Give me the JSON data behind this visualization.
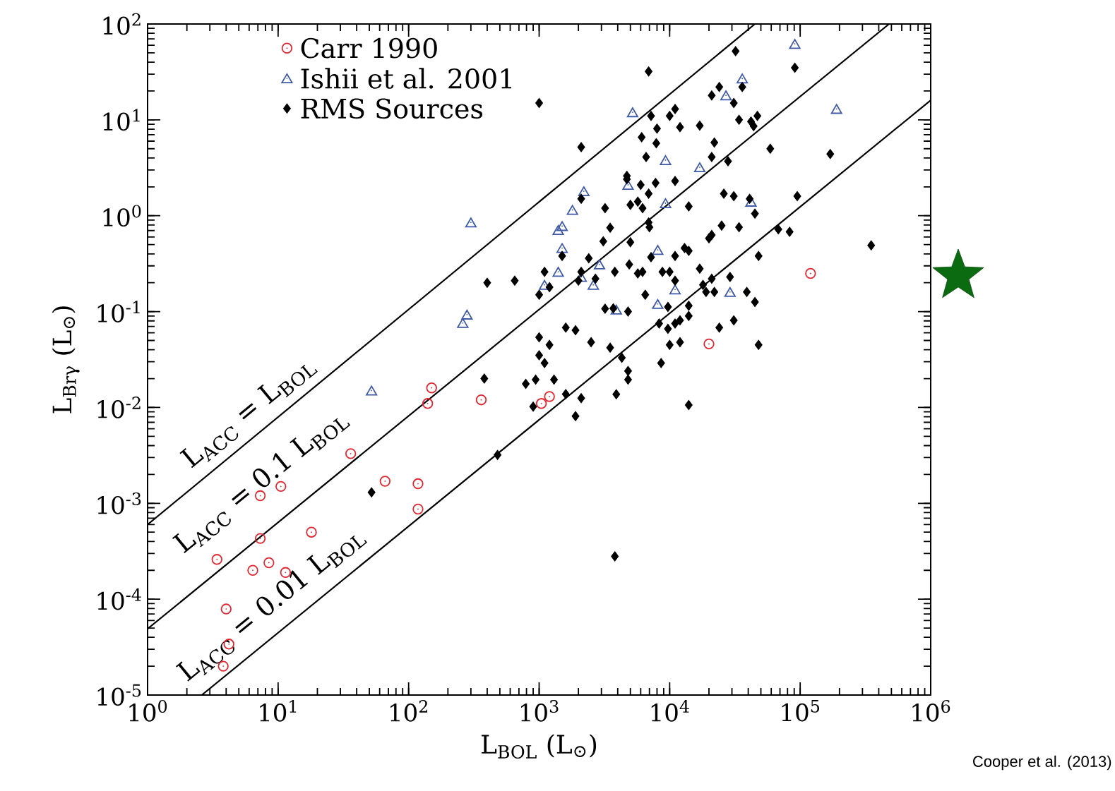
{
  "chart_data": {
    "type": "scatter",
    "xlabel": "L$_{BOL}$  (L$_{⊙}$)",
    "ylabel": "L$_{Brγ}$  (L$_{⊙}$)",
    "log": "xy",
    "legend": "top left",
    "xlim": [
      1,
      1000000
    ],
    "ylim": [
      1e-05,
      100
    ],
    "xticks": [
      {
        "value": 1,
        "label": "10$^{0}$"
      },
      {
        "value": 10,
        "label": "10$^{1}$"
      },
      {
        "value": 100,
        "label": "10$^{2}$"
      },
      {
        "value": 1000,
        "label": "10$^{3}$"
      },
      {
        "value": 10000,
        "label": "10$^{4}$"
      },
      {
        "value": 100000,
        "label": "10$^{5}$"
      },
      {
        "value": 1000000,
        "label": "10$^{6}$"
      }
    ],
    "yticks": [
      {
        "value": 1e-05,
        "label": "10$^{-5}$"
      },
      {
        "value": 0.0001,
        "label": "10$^{-4}$"
      },
      {
        "value": 0.001,
        "label": "10$^{-3}$"
      },
      {
        "value": 0.01,
        "label": "10$^{-2}$"
      },
      {
        "value": 0.1,
        "label": "10$^{-1}$"
      },
      {
        "value": 1,
        "label": "10$^{0}$"
      },
      {
        "value": 10,
        "label": "10$^{1}$"
      },
      {
        "value": 100,
        "label": "10$^{2}$"
      }
    ],
    "series": [
      {
        "name": "Carr 1990",
        "color": "#e32630",
        "marker": "circle",
        "x": [
          120000,
          20000,
          150,
          140,
          360,
          1040,
          1200,
          36,
          66,
          118,
          118,
          7.3,
          10.5,
          18,
          7.3,
          3.4,
          6.4,
          8.5,
          11.4,
          4.0,
          4.2,
          3.8
        ],
        "values": [
          0.25,
          0.046,
          0.016,
          0.011,
          0.012,
          0.011,
          0.013,
          0.0033,
          0.0017,
          0.0016,
          0.00087,
          0.0012,
          0.0015,
          0.0005,
          0.00043,
          0.00026,
          0.0002,
          0.00024,
          0.00019,
          7.9e-05,
          3.4e-05,
          2e-05
        ]
      },
      {
        "name": "Ishii et al. 2001",
        "color": "#3f5aa8",
        "marker": "triangle",
        "x": [
          91000,
          36000,
          27000,
          5200,
          190000,
          9300,
          17000,
          2200,
          4800,
          1800,
          9300,
          42000,
          1500,
          1400,
          300,
          1500,
          8100,
          1400,
          2900,
          1100,
          2100,
          2600,
          11000,
          29000,
          3900,
          8100,
          280,
          260,
          52
        ],
        "values": [
          62,
          27,
          18,
          12,
          13,
          3.8,
          3.2,
          1.8,
          2.1,
          1.15,
          1.35,
          1.4,
          0.78,
          0.71,
          0.85,
          0.46,
          0.44,
          0.26,
          0.31,
          0.19,
          0.23,
          0.19,
          0.17,
          0.16,
          0.105,
          0.12,
          0.093,
          0.076,
          0.015
        ]
      },
      {
        "name": "RMS Sources",
        "color": "#000000",
        "marker": "diamond",
        "x": [
          32000,
          91000,
          6900,
          1000,
          24000,
          36000,
          21000,
          31000,
          7200,
          11000,
          10000,
          34000,
          42000,
          47000,
          44000,
          8000,
          12000,
          17000,
          6100,
          7900,
          2100,
          22000,
          59000,
          170000,
          6600,
          21000,
          28000,
          4700,
          4700,
          6000,
          7800,
          11000,
          6900,
          2100,
          26000,
          31000,
          41000,
          95000,
          3200,
          5000,
          5700,
          6200,
          14000,
          45000,
          6900,
          7000,
          3500,
          25000,
          34000,
          68000,
          83000,
          350000,
          3100,
          5000,
          21000,
          20000,
          13000,
          14000,
          1500,
          2400,
          7200,
          11000,
          48000,
          1100,
          2100,
          2000,
          2700,
          3800,
          4900,
          5700,
          6200,
          8800,
          10000,
          17000,
          11000,
          21000,
          29000,
          1200,
          1000,
          6500,
          18000,
          19000,
          22000,
          39000,
          45000,
          3200,
          3700,
          4800,
          9700,
          14000,
          14000,
          12000,
          11000,
          8300,
          9700,
          31000,
          24000,
          1600,
          1900,
          1000,
          1200,
          2500,
          3500,
          10000,
          12000,
          48000,
          1000,
          4300,
          1100,
          8600,
          4800,
          4800,
          790,
          940,
          1300,
          1600,
          2100,
          3900,
          900,
          1900,
          14000,
          3800,
          380,
          480,
          52,
          400,
          650
        ],
        "values": [
          52,
          35,
          32,
          15,
          22,
          22,
          18,
          15,
          11,
          13,
          11,
          10,
          9.6,
          11,
          8.6,
          8.1,
          8.4,
          8.7,
          6.6,
          5.7,
          5.2,
          5.8,
          5.0,
          4.4,
          4.1,
          4.1,
          3.7,
          2.6,
          2.4,
          2.1,
          2.2,
          2.3,
          1.7,
          1.5,
          1.7,
          1.6,
          1.5,
          1.6,
          1.2,
          1.3,
          1.4,
          1.2,
          1.25,
          1.05,
          0.85,
          0.76,
          0.75,
          0.79,
          0.76,
          0.72,
          0.68,
          0.49,
          0.54,
          0.53,
          0.63,
          0.58,
          0.46,
          0.43,
          0.38,
          0.36,
          0.37,
          0.38,
          0.38,
          0.26,
          0.26,
          0.21,
          0.22,
          0.26,
          0.31,
          0.25,
          0.26,
          0.26,
          0.26,
          0.28,
          0.21,
          0.22,
          0.23,
          0.18,
          0.15,
          0.15,
          0.19,
          0.16,
          0.16,
          0.16,
          0.126,
          0.107,
          0.108,
          0.1,
          0.112,
          0.115,
          0.09,
          0.081,
          0.075,
          0.075,
          0.066,
          0.081,
          0.068,
          0.068,
          0.064,
          0.054,
          0.045,
          0.048,
          0.042,
          0.045,
          0.048,
          0.045,
          0.035,
          0.033,
          0.029,
          0.029,
          0.024,
          0.0195,
          0.0176,
          0.0195,
          0.0195,
          0.0138,
          0.0125,
          0.0137,
          0.0102,
          0.0081,
          0.0106,
          0.00028,
          0.02,
          0.0032,
          0.0013,
          0.2,
          0.21
        ]
      },
      {
        "type": "line",
        "color": "#000000",
        "marker": "none",
        "x": [
          1,
          45000
        ],
        "values": [
          0.0006,
          100
        ]
      },
      {
        "type": "line",
        "color": "#000000",
        "marker": "none",
        "x": [
          1,
          480000
        ],
        "values": [
          4.9e-05,
          100
        ]
      },
      {
        "type": "line",
        "color": "#000000",
        "marker": "none",
        "x": [
          2.6,
          1000000
        ],
        "values": [
          1e-05,
          16
        ]
      }
    ],
    "annotations": [
      "L$_{ACC}$ = L$_{BOL}$",
      "L$_{ACC}$ = 0.1 L$_{BOL}$",
      "L$_{ACC}$ = 0.01 L$_{BOL}$",
      "Cooper et al. (2013)"
    ]
  }
}
